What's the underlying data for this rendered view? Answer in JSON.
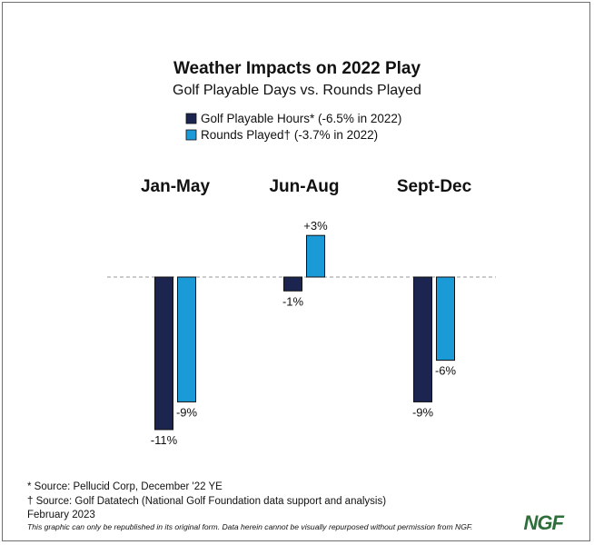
{
  "chart_data": {
    "type": "bar",
    "title": "Weather Impacts on 2022 Play",
    "subtitle": "Golf Playable Days vs. Rounds Played",
    "categories": [
      "Jan-May",
      "Jun-Aug",
      "Sept-Dec"
    ],
    "series": [
      {
        "name": "Golf Playable Hours* (-6.5% in 2022)",
        "color": "#1b2550",
        "values": [
          -11,
          -1,
          -9
        ],
        "labels": [
          "-11%",
          "-1%",
          "-9%"
        ]
      },
      {
        "name": "Rounds Played† (-3.7% in 2022)",
        "color": "#1a9ad6",
        "values": [
          -9,
          3,
          -6
        ],
        "labels": [
          "-9%",
          "+3%",
          "-6%"
        ]
      }
    ],
    "ylim": [
      -11,
      3
    ],
    "xlabel": "",
    "ylabel": "",
    "zero_line": "dashed"
  },
  "footnotes": [
    "* Source: Pellucid Corp, December '22 YE",
    "† Source: Golf Datatech (National Golf Foundation data support and analysis)",
    "February 2023"
  ],
  "disclaimer": "This graphic can only be republished in its original form. Data herein cannot be visually repurposed without permission from NGF.",
  "logo": {
    "text": "NGF",
    "color": "#2e6e3a"
  }
}
